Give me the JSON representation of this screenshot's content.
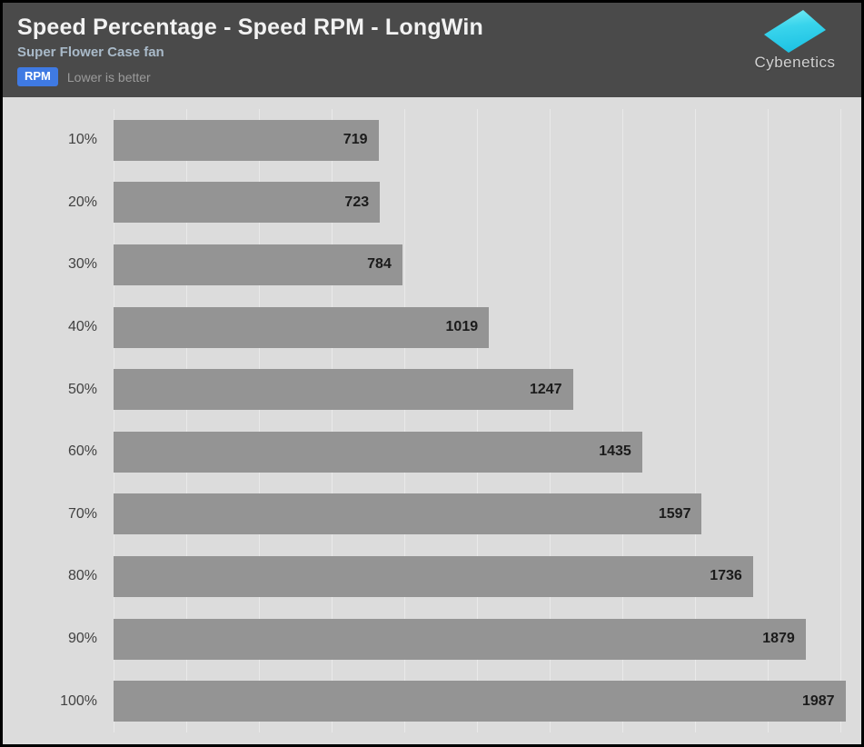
{
  "header": {
    "title": "Speed Percentage - Speed RPM - LongWin",
    "subtitle": "Super Flower Case fan",
    "unit_badge": "RPM",
    "note": "Lower is better",
    "brand": "Cybenetics"
  },
  "colors": {
    "header_bg": "#4a4a4a",
    "title_text": "#f2f2f2",
    "subtitle_text": "#a9bac9",
    "badge_bg": "#3f7ae3",
    "badge_text": "#ffffff",
    "note_text": "#9b9b9b",
    "chart_bg": "#dcdcdc",
    "gridline": "#e9e9e9",
    "bar": "#949494",
    "value_label": "#1b1b1b",
    "category_label": "#414141",
    "brand_text": "#d2d2d2",
    "logo_gradient_top": "#7ceef5",
    "logo_gradient_bottom": "#1fc3e4"
  },
  "chart_data": {
    "type": "bar",
    "orientation": "horizontal",
    "title": "Speed Percentage - Speed RPM - LongWin",
    "subtitle": "Super Flower Case fan",
    "unit": "RPM",
    "note": "Lower is better",
    "categories": [
      "10%",
      "20%",
      "30%",
      "40%",
      "50%",
      "60%",
      "70%",
      "80%",
      "90%",
      "100%"
    ],
    "values": [
      719,
      723,
      784,
      1019,
      1247,
      1435,
      1597,
      1736,
      1879,
      1987
    ],
    "xlabel": "",
    "ylabel": "",
    "xlim": [
      0,
      2025
    ],
    "gridline_count": 11,
    "gridline_spacing_px": 80,
    "grid": true,
    "legend": false,
    "value_labels": "inside-end"
  }
}
